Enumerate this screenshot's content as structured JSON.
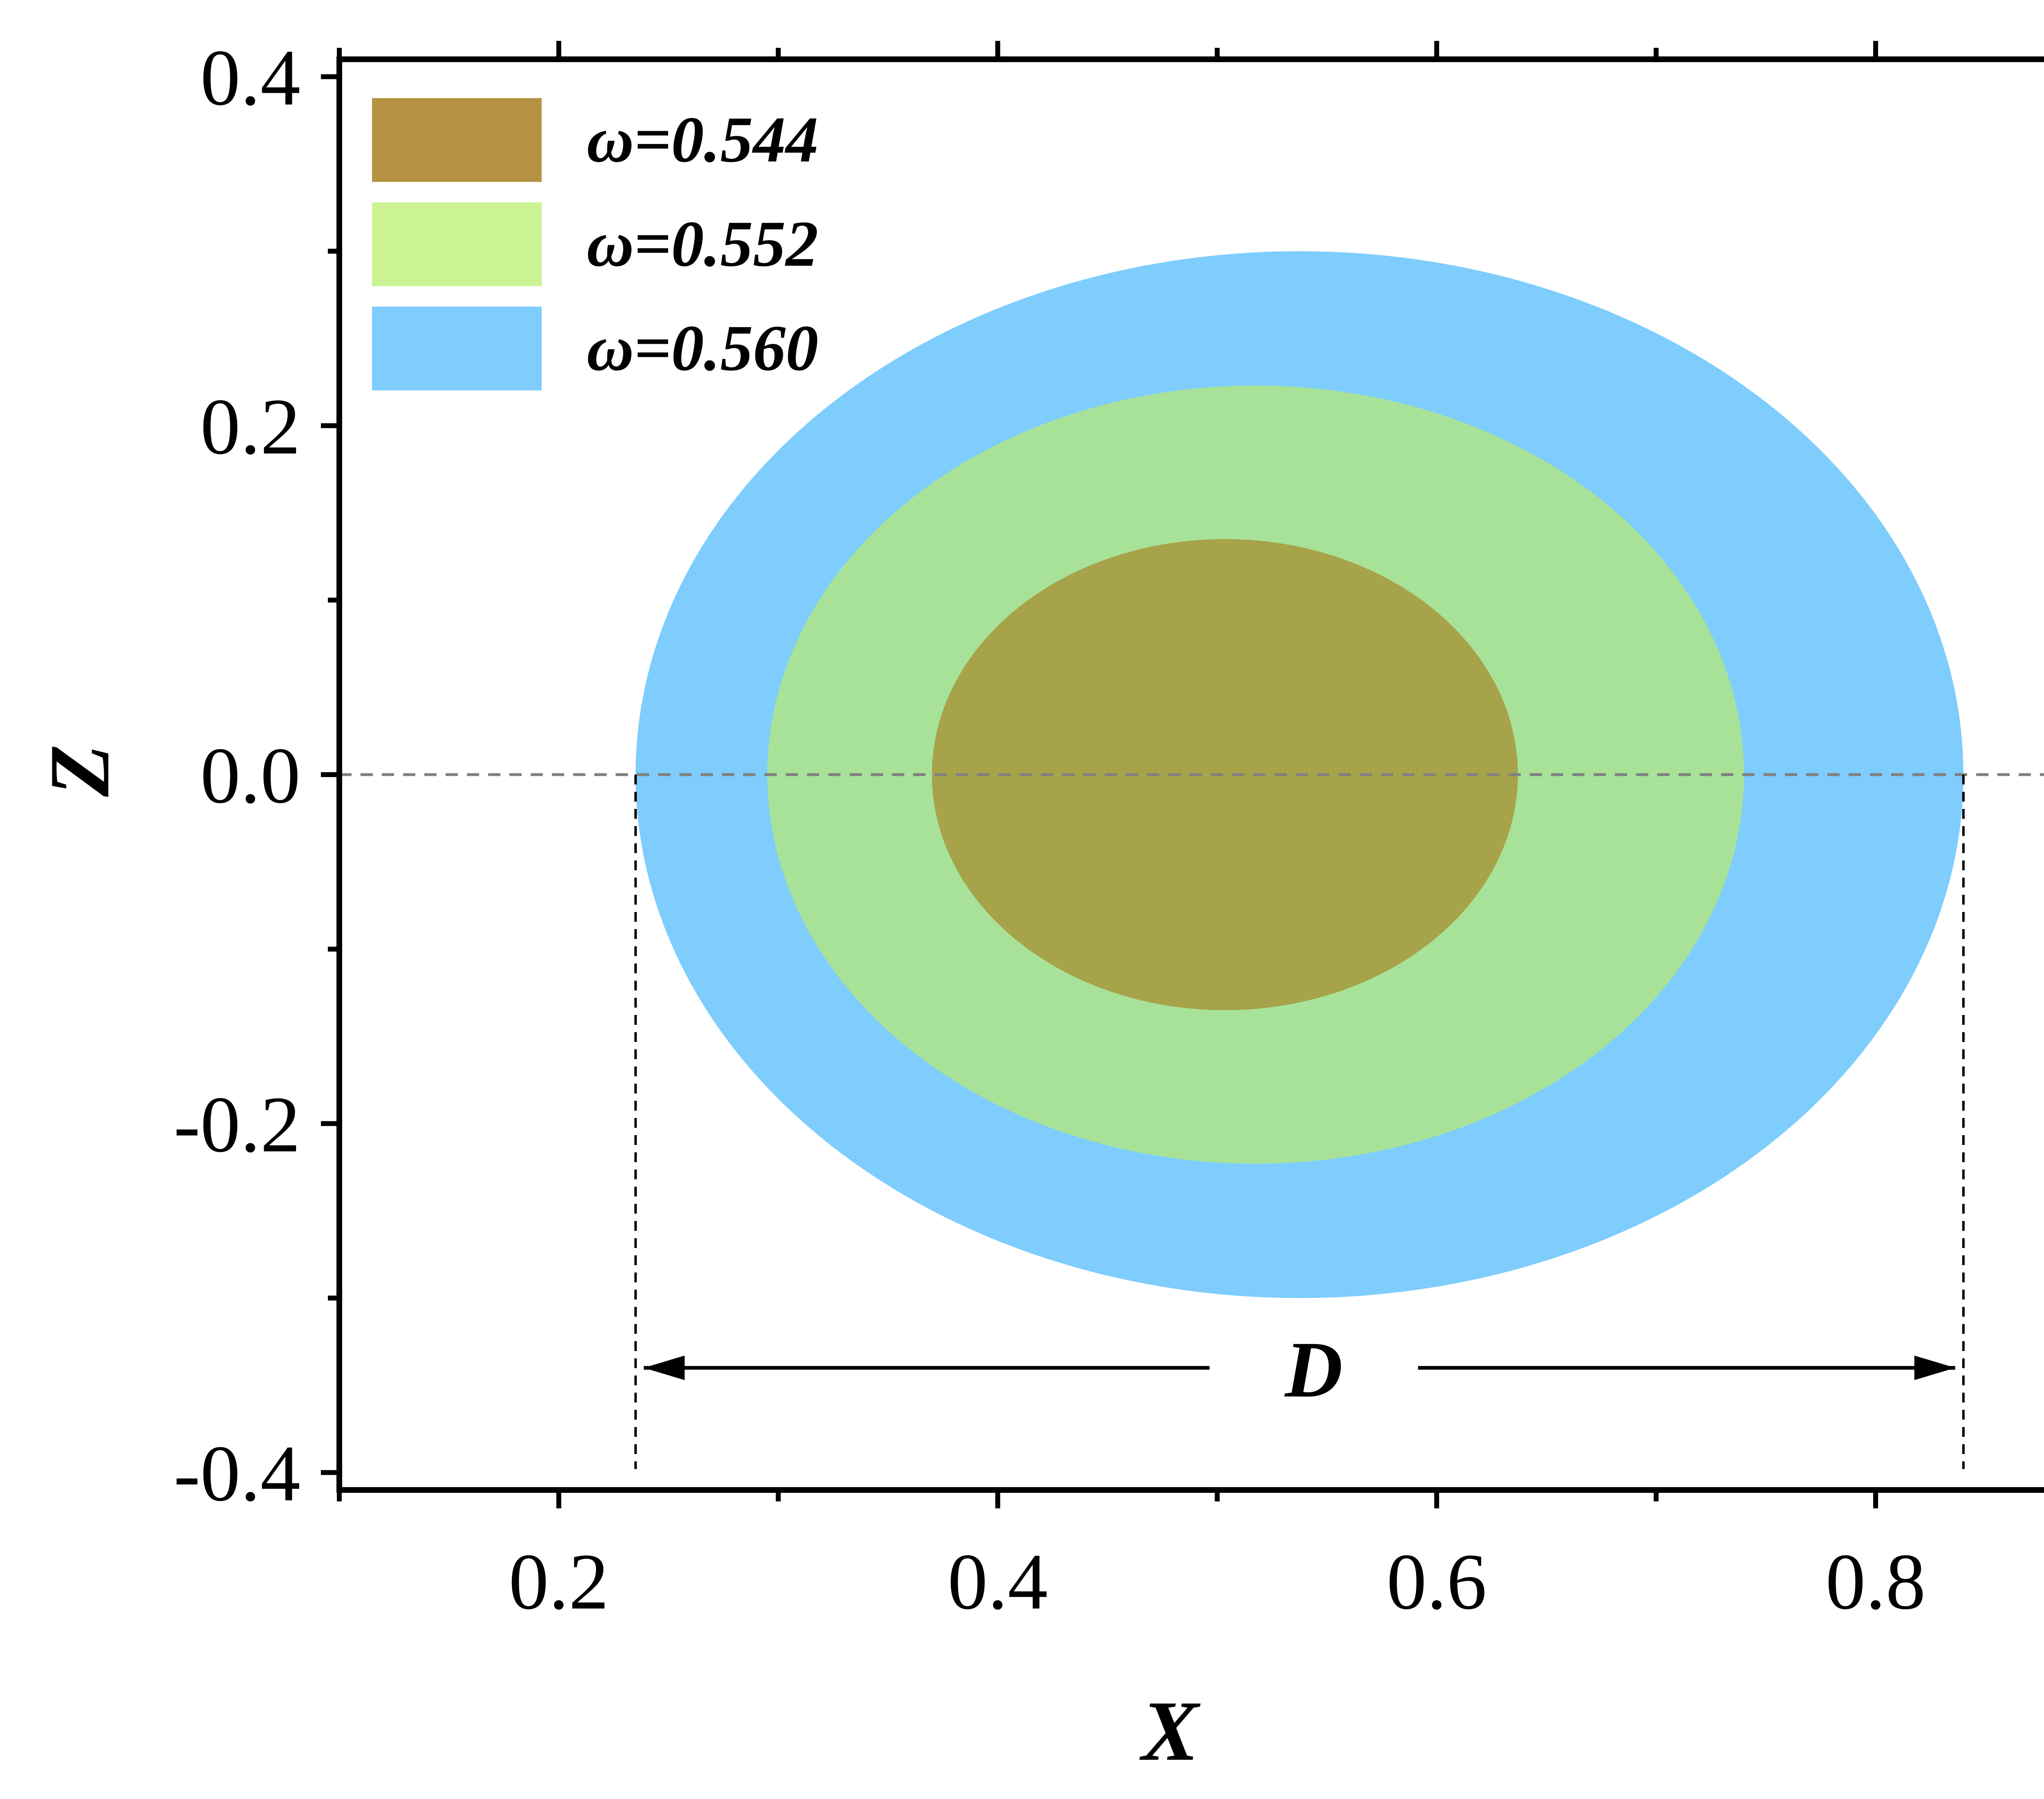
{
  "chart_data": {
    "type": "area",
    "xlabel": "X",
    "ylabel": "Z",
    "xlim": [
      0.1,
      0.9
    ],
    "ylim": [
      -0.41,
      0.41
    ],
    "x_ticks": [
      "0.2",
      "0.4",
      "0.6",
      "0.8"
    ],
    "y_ticks": [
      "0.4",
      "0.2",
      "0.0",
      "-0.2",
      "-0.4"
    ],
    "grid": false,
    "legend_position": "top-left",
    "series": [
      {
        "name": "ω=0.560",
        "color": "#7ecdfd",
        "center": [
          0.537,
          0.0
        ],
        "x_extent": [
          0.235,
          0.84
        ],
        "z_extent": [
          -0.3,
          0.3
        ]
      },
      {
        "name": "ω=0.552",
        "color": "#cbf394",
        "center": [
          0.515,
          0.0
        ],
        "x_extent": [
          0.295,
          0.74
        ],
        "z_extent": [
          -0.223,
          0.223
        ]
      },
      {
        "name": "ω=0.544",
        "color": "#b69344",
        "center": [
          0.505,
          0.0
        ],
        "x_extent": [
          0.37,
          0.637
        ],
        "z_extent": [
          -0.135,
          0.135
        ]
      }
    ],
    "annotations": {
      "dimension_label": "D",
      "dimension_from_x": 0.235,
      "dimension_to_x": 0.84,
      "dimension_z": -0.34,
      "zero_reference_line": 0.0
    }
  }
}
